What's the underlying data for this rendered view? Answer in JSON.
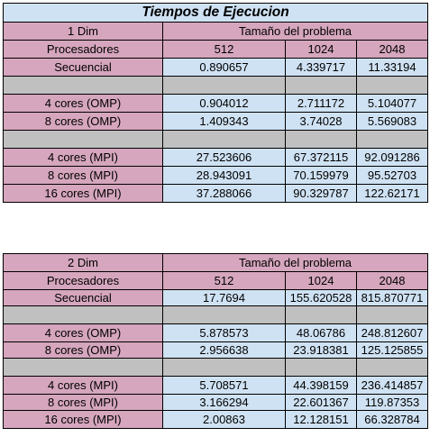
{
  "title": "Tiempos de Ejecucion",
  "tables": [
    {
      "dim_label": "1 Dim",
      "size_header": "Tamaño del problema",
      "proc_label": "Procesadores",
      "sizes": [
        "512",
        "1024",
        "2048"
      ],
      "seq": {
        "label": "Secuencial",
        "values": [
          "0.890657",
          "4.339717",
          "11.33194"
        ]
      },
      "omp": [
        {
          "label": "4 cores (OMP)",
          "values": [
            "0.904012",
            "2.711172",
            "5.104077"
          ]
        },
        {
          "label": "8 cores (OMP)",
          "values": [
            "1.409343",
            "3.74028",
            "5.569083"
          ]
        }
      ],
      "mpi": [
        {
          "label": "4 cores (MPI)",
          "values": [
            "27.523606",
            "67.372115",
            "92.091286"
          ]
        },
        {
          "label": "8 cores (MPI)",
          "values": [
            "28.943091",
            "70.159979",
            "95.52703"
          ]
        },
        {
          "label": "16 cores (MPI)",
          "values": [
            "37.288066",
            "90.329787",
            "122.62171"
          ]
        }
      ]
    },
    {
      "dim_label": "2 Dim",
      "size_header": "Tamaño del problema",
      "proc_label": "Procesadores",
      "sizes": [
        "512",
        "1024",
        "2048"
      ],
      "seq": {
        "label": "Secuencial",
        "values": [
          "17.7694",
          "155.620528",
          "815.870771"
        ]
      },
      "omp": [
        {
          "label": "4 cores (OMP)",
          "values": [
            "5.878573",
            "48.06786",
            "248.812607"
          ]
        },
        {
          "label": "8 cores (OMP)",
          "values": [
            "2.956638",
            "23.918381",
            "125.125855"
          ]
        }
      ],
      "mpi": [
        {
          "label": "4 cores (MPI)",
          "values": [
            "5.708571",
            "44.398159",
            "236.414857"
          ]
        },
        {
          "label": "8 cores (MPI)",
          "values": [
            "3.166294",
            "22.601367",
            "119.87353"
          ]
        },
        {
          "label": "16 cores (MPI)",
          "values": [
            "2.00863",
            "12.128151",
            "66.328784"
          ]
        }
      ]
    }
  ],
  "colors": {
    "header_pink": "#d5a6bd",
    "cell_blue": "#cfe2f3",
    "separator_gray": "#c0c0c0"
  }
}
